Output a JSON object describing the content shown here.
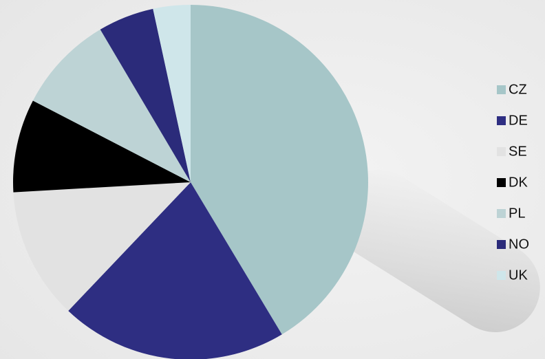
{
  "chart_data": {
    "type": "pie",
    "categories": [
      "CZ",
      "DE",
      "SE",
      "DK",
      "PL",
      "NO",
      "UK"
    ],
    "values": [
      41.4,
      20.7,
      12.0,
      8.5,
      8.9,
      5.1,
      3.4
    ],
    "colors": [
      "#a6c6c8",
      "#2e2e82",
      "#e2e2e2",
      "#000000",
      "#bdd3d5",
      "#2b2b7a",
      "#cfe6ea"
    ],
    "legend": "right"
  }
}
